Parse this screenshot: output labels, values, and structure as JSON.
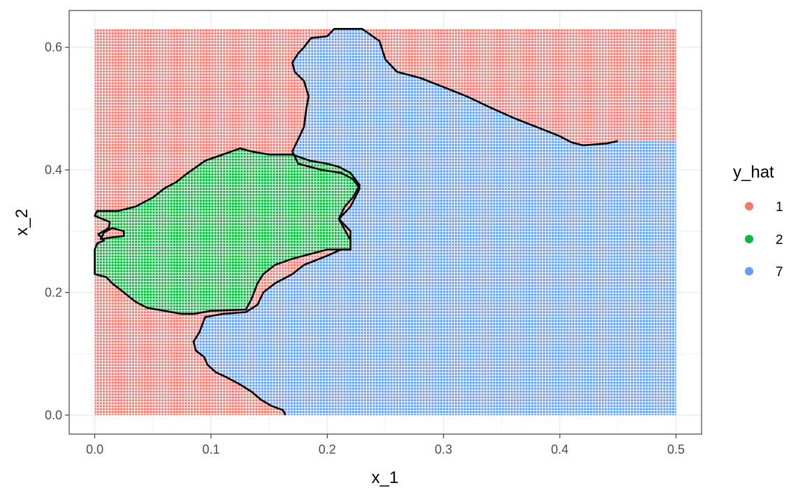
{
  "chart_data": {
    "type": "scatter",
    "description_kind": "decision-region grid with contour boundary",
    "xlabel": "x_1",
    "ylabel": "x_2",
    "xlim": [
      -0.022,
      0.522
    ],
    "ylim": [
      -0.031,
      0.66
    ],
    "x_ticks": [
      0.0,
      0.1,
      0.2,
      0.3,
      0.4,
      0.5
    ],
    "x_tick_labels": [
      "0.0",
      "0.1",
      "0.2",
      "0.3",
      "0.4",
      "0.5"
    ],
    "y_ticks": [
      0.0,
      0.2,
      0.4,
      0.6
    ],
    "y_tick_labels": [
      "0.0",
      "0.2",
      "0.4",
      "0.6"
    ],
    "grid": true,
    "panel_border": true,
    "grid_range": {
      "x": [
        0.0,
        0.5
      ],
      "y": [
        0.0,
        0.63
      ]
    },
    "legend": {
      "title": "y_hat",
      "position": "right",
      "entries": [
        {
          "label": "1",
          "color": "#F8766D"
        },
        {
          "label": "2",
          "color": "#00BA38"
        },
        {
          "label": "7",
          "color": "#619CFF"
        }
      ]
    },
    "regions": [
      {
        "class": "1",
        "color": "#F8766D",
        "role": "background"
      },
      {
        "class": "7",
        "color": "#619CFF",
        "boundary": [
          [
            0.164,
            0.0
          ],
          [
            0.162,
            0.008
          ],
          [
            0.152,
            0.015
          ],
          [
            0.143,
            0.025
          ],
          [
            0.135,
            0.038
          ],
          [
            0.125,
            0.05
          ],
          [
            0.113,
            0.062
          ],
          [
            0.104,
            0.07
          ],
          [
            0.097,
            0.082
          ],
          [
            0.094,
            0.095
          ],
          [
            0.087,
            0.105
          ],
          [
            0.085,
            0.12
          ],
          [
            0.09,
            0.135
          ],
          [
            0.095,
            0.16
          ],
          [
            0.11,
            0.165
          ],
          [
            0.13,
            0.168
          ],
          [
            0.14,
            0.18
          ],
          [
            0.145,
            0.2
          ],
          [
            0.155,
            0.215
          ],
          [
            0.17,
            0.23
          ],
          [
            0.18,
            0.245
          ],
          [
            0.2,
            0.26
          ],
          [
            0.212,
            0.27
          ],
          [
            0.22,
            0.27
          ],
          [
            0.22,
            0.3
          ],
          [
            0.21,
            0.32
          ],
          [
            0.22,
            0.34
          ],
          [
            0.228,
            0.37
          ],
          [
            0.222,
            0.385
          ],
          [
            0.212,
            0.395
          ],
          [
            0.195,
            0.4
          ],
          [
            0.185,
            0.405
          ],
          [
            0.175,
            0.41
          ],
          [
            0.17,
            0.43
          ],
          [
            0.175,
            0.45
          ],
          [
            0.18,
            0.47
          ],
          [
            0.182,
            0.5
          ],
          [
            0.184,
            0.52
          ],
          [
            0.18,
            0.545
          ],
          [
            0.172,
            0.56
          ],
          [
            0.17,
            0.575
          ],
          [
            0.175,
            0.59
          ],
          [
            0.18,
            0.6
          ],
          [
            0.186,
            0.615
          ],
          [
            0.2,
            0.618
          ],
          [
            0.206,
            0.63
          ],
          [
            0.23,
            0.63
          ],
          [
            0.245,
            0.61
          ],
          [
            0.25,
            0.58
          ],
          [
            0.26,
            0.56
          ],
          [
            0.28,
            0.55
          ],
          [
            0.3,
            0.535
          ],
          [
            0.32,
            0.52
          ],
          [
            0.34,
            0.502
          ],
          [
            0.36,
            0.485
          ],
          [
            0.38,
            0.47
          ],
          [
            0.4,
            0.455
          ],
          [
            0.41,
            0.445
          ],
          [
            0.42,
            0.44
          ],
          [
            0.44,
            0.443
          ],
          [
            0.45,
            0.447
          ],
          [
            0.5,
            0.447
          ],
          [
            0.5,
            0.0
          ]
        ]
      },
      {
        "class": "2",
        "color": "#00BA38",
        "boundary": [
          [
            0.0,
            0.23
          ],
          [
            0.0,
            0.27
          ],
          [
            0.002,
            0.28
          ],
          [
            0.008,
            0.285
          ],
          [
            0.003,
            0.295
          ],
          [
            0.012,
            0.305
          ],
          [
            0.013,
            0.315
          ],
          [
            0.0,
            0.325
          ],
          [
            0.002,
            0.333
          ],
          [
            0.02,
            0.333
          ],
          [
            0.035,
            0.34
          ],
          [
            0.05,
            0.355
          ],
          [
            0.06,
            0.37
          ],
          [
            0.07,
            0.38
          ],
          [
            0.08,
            0.395
          ],
          [
            0.095,
            0.415
          ],
          [
            0.11,
            0.425
          ],
          [
            0.125,
            0.435
          ],
          [
            0.135,
            0.43
          ],
          [
            0.15,
            0.425
          ],
          [
            0.17,
            0.425
          ],
          [
            0.185,
            0.415
          ],
          [
            0.2,
            0.41
          ],
          [
            0.21,
            0.405
          ],
          [
            0.22,
            0.395
          ],
          [
            0.228,
            0.375
          ],
          [
            0.222,
            0.355
          ],
          [
            0.215,
            0.34
          ],
          [
            0.21,
            0.32
          ],
          [
            0.22,
            0.285
          ],
          [
            0.22,
            0.27
          ],
          [
            0.2,
            0.27
          ],
          [
            0.18,
            0.26
          ],
          [
            0.17,
            0.255
          ],
          [
            0.155,
            0.245
          ],
          [
            0.145,
            0.23
          ],
          [
            0.14,
            0.215
          ],
          [
            0.135,
            0.19
          ],
          [
            0.13,
            0.172
          ],
          [
            0.1,
            0.17
          ],
          [
            0.085,
            0.165
          ],
          [
            0.075,
            0.165
          ],
          [
            0.06,
            0.17
          ],
          [
            0.045,
            0.175
          ],
          [
            0.035,
            0.185
          ],
          [
            0.025,
            0.2
          ],
          [
            0.015,
            0.215
          ],
          [
            0.01,
            0.225
          ]
        ]
      },
      {
        "class": "1",
        "color": "#F8766D",
        "role": "pocket",
        "boundary": [
          [
            0.005,
            0.287
          ],
          [
            0.015,
            0.29
          ],
          [
            0.025,
            0.292
          ],
          [
            0.025,
            0.3
          ],
          [
            0.015,
            0.305
          ],
          [
            0.008,
            0.298
          ]
        ]
      }
    ]
  }
}
